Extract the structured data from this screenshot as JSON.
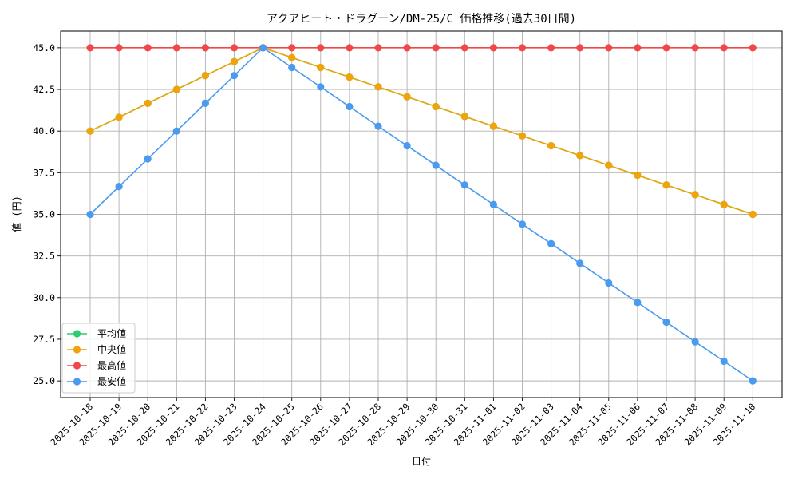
{
  "chart_data": {
    "type": "line",
    "title": "アクアヒート・ドラグーン/DM-25/C 価格推移(過去30日間)",
    "xlabel": "日付",
    "ylabel": "値 (円)",
    "ylim": [
      24,
      46
    ],
    "yticks": [
      "25.0",
      "27.5",
      "30.0",
      "32.5",
      "35.0",
      "37.5",
      "40.0",
      "42.5",
      "45.0"
    ],
    "grid": true,
    "legend_position": "lower-left",
    "categories": [
      "2025-10-18",
      "2025-10-19",
      "2025-10-20",
      "2025-10-21",
      "2025-10-22",
      "2025-10-23",
      "2025-10-24",
      "2025-10-25",
      "2025-10-26",
      "2025-10-27",
      "2025-10-28",
      "2025-10-29",
      "2025-10-30",
      "2025-10-31",
      "2025-11-01",
      "2025-11-02",
      "2025-11-03",
      "2025-11-04",
      "2025-11-05",
      "2025-11-06",
      "2025-11-07",
      "2025-11-08",
      "2025-11-09",
      "2025-11-10"
    ],
    "series": [
      {
        "name": "平均値",
        "color": "#2ecc71",
        "values": [
          40.0,
          40.83,
          41.67,
          42.5,
          43.33,
          44.17,
          45.0,
          44.41,
          43.82,
          43.24,
          42.65,
          42.06,
          41.47,
          40.88,
          40.29,
          39.71,
          39.12,
          38.53,
          37.94,
          37.35,
          36.76,
          36.18,
          35.59,
          35.0
        ]
      },
      {
        "name": "中央値",
        "color": "#f0a30a",
        "values": [
          40.0,
          40.83,
          41.67,
          42.5,
          43.33,
          44.17,
          45.0,
          44.41,
          43.82,
          43.24,
          42.65,
          42.06,
          41.47,
          40.88,
          40.29,
          39.71,
          39.12,
          38.53,
          37.94,
          37.35,
          36.76,
          36.18,
          35.59,
          35.0
        ]
      },
      {
        "name": "最高値",
        "color": "#f04848",
        "values": [
          45.0,
          45.0,
          45.0,
          45.0,
          45.0,
          45.0,
          45.0,
          45.0,
          45.0,
          45.0,
          45.0,
          45.0,
          45.0,
          45.0,
          45.0,
          45.0,
          45.0,
          45.0,
          45.0,
          45.0,
          45.0,
          45.0,
          45.0,
          45.0
        ]
      },
      {
        "name": "最安値",
        "color": "#4a9aef",
        "values": [
          35.0,
          36.67,
          38.33,
          40.0,
          41.67,
          43.33,
          45.0,
          43.82,
          42.65,
          41.47,
          40.29,
          39.12,
          37.94,
          36.76,
          35.59,
          34.41,
          33.24,
          32.06,
          30.88,
          29.71,
          28.53,
          27.35,
          26.18,
          25.0
        ]
      }
    ]
  }
}
